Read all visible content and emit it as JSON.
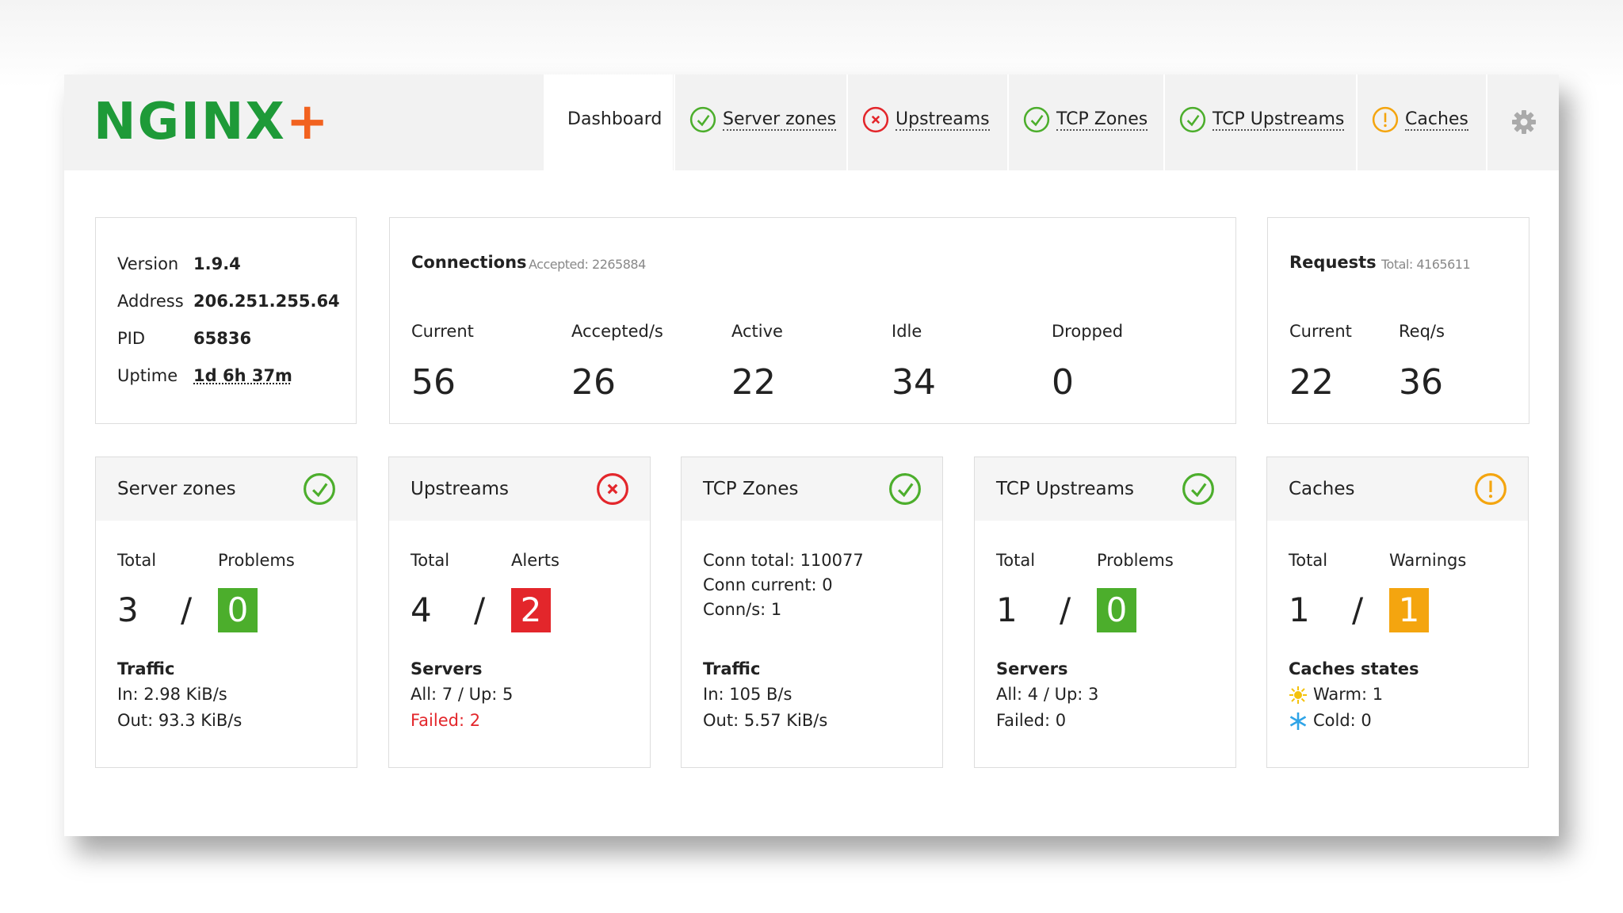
{
  "header": {
    "logo_text": "NGINX",
    "logo_mark": "+",
    "settings_label": null,
    "tabs": [
      {
        "label": "Dashboard",
        "status": null,
        "active": true
      },
      {
        "label": "Server zones",
        "status": "ok"
      },
      {
        "label": "Upstreams",
        "status": "error"
      },
      {
        "label": "TCP Zones",
        "status": "ok"
      },
      {
        "label": "TCP Upstreams",
        "status": "ok"
      },
      {
        "label": "Caches",
        "status": "warning"
      }
    ]
  },
  "info": {
    "rows": [
      {
        "label": "Version",
        "value": "1.9.4"
      },
      {
        "label": "Address",
        "value": "206.251.255.64"
      },
      {
        "label": "PID",
        "value": "65836"
      },
      {
        "label": "Uptime",
        "value": "1d 6h 37m"
      }
    ]
  },
  "connections": {
    "title": "Connections",
    "total_label": "Accepted:",
    "total": 2265884,
    "stats": [
      {
        "label": "Current",
        "value": 56
      },
      {
        "label": "Accepted/s",
        "value": 26
      },
      {
        "label": "Active",
        "value": 22
      },
      {
        "label": "Idle",
        "value": 34
      },
      {
        "label": "Dropped",
        "value": 0
      }
    ]
  },
  "requests": {
    "title": "Requests",
    "total_label": "Total:",
    "total": 4165611,
    "stats": [
      {
        "label": "Current",
        "value": 22
      },
      {
        "label": "Req/s",
        "value": 36
      }
    ]
  },
  "widgets": [
    {
      "title": "Server zones",
      "status": "ok",
      "summary": {
        "total_label": "Total",
        "total": 3,
        "divider": "/",
        "issue_label": "Problems",
        "issue": 0,
        "issue_color": "#4cae2c"
      },
      "section_title": "Traffic",
      "section_lines": [
        {
          "text": "In: 2.98 KiB/s"
        },
        {
          "text": "Out: 93.3 KiB/s"
        }
      ]
    },
    {
      "title": "Upstreams",
      "status": "error",
      "summary": {
        "total_label": "Total",
        "total": 4,
        "divider": "/",
        "issue_label": "Alerts",
        "issue": 2,
        "issue_color": "#e3262b"
      },
      "section_title": "Servers",
      "section_lines": [
        {
          "text": "All: 7 / Up: 5"
        },
        {
          "text": "Failed: 2",
          "color": "#e3262b"
        }
      ]
    },
    {
      "title": "TCP Zones",
      "status": "ok",
      "lines": [
        "Conn total: 110077",
        "Conn current: 0",
        "Conn/s: 1"
      ],
      "section_title": "Traffic",
      "section_lines": [
        {
          "text": "In: 105 B/s"
        },
        {
          "text": "Out: 5.57 KiB/s"
        }
      ]
    },
    {
      "title": "TCP Upstreams",
      "status": "ok",
      "summary": {
        "total_label": "Total",
        "total": 1,
        "divider": "/",
        "issue_label": "Problems",
        "issue": 0,
        "issue_color": "#4cae2c"
      },
      "section_title": "Servers",
      "section_lines": [
        {
          "text": "All: 4 / Up: 3"
        },
        {
          "text": "Failed: 0"
        }
      ]
    },
    {
      "title": "Caches",
      "status": "warning",
      "summary": {
        "total_label": "Total",
        "total": 1,
        "divider": "/",
        "issue_label": "Warnings",
        "issue": 1,
        "issue_color": "#f4a50f"
      },
      "section_title": "Caches states",
      "section_lines": [
        {
          "text": "Warm: 1",
          "icon": "sun"
        },
        {
          "text": "Cold: 0",
          "icon": "snow"
        }
      ]
    }
  ]
}
